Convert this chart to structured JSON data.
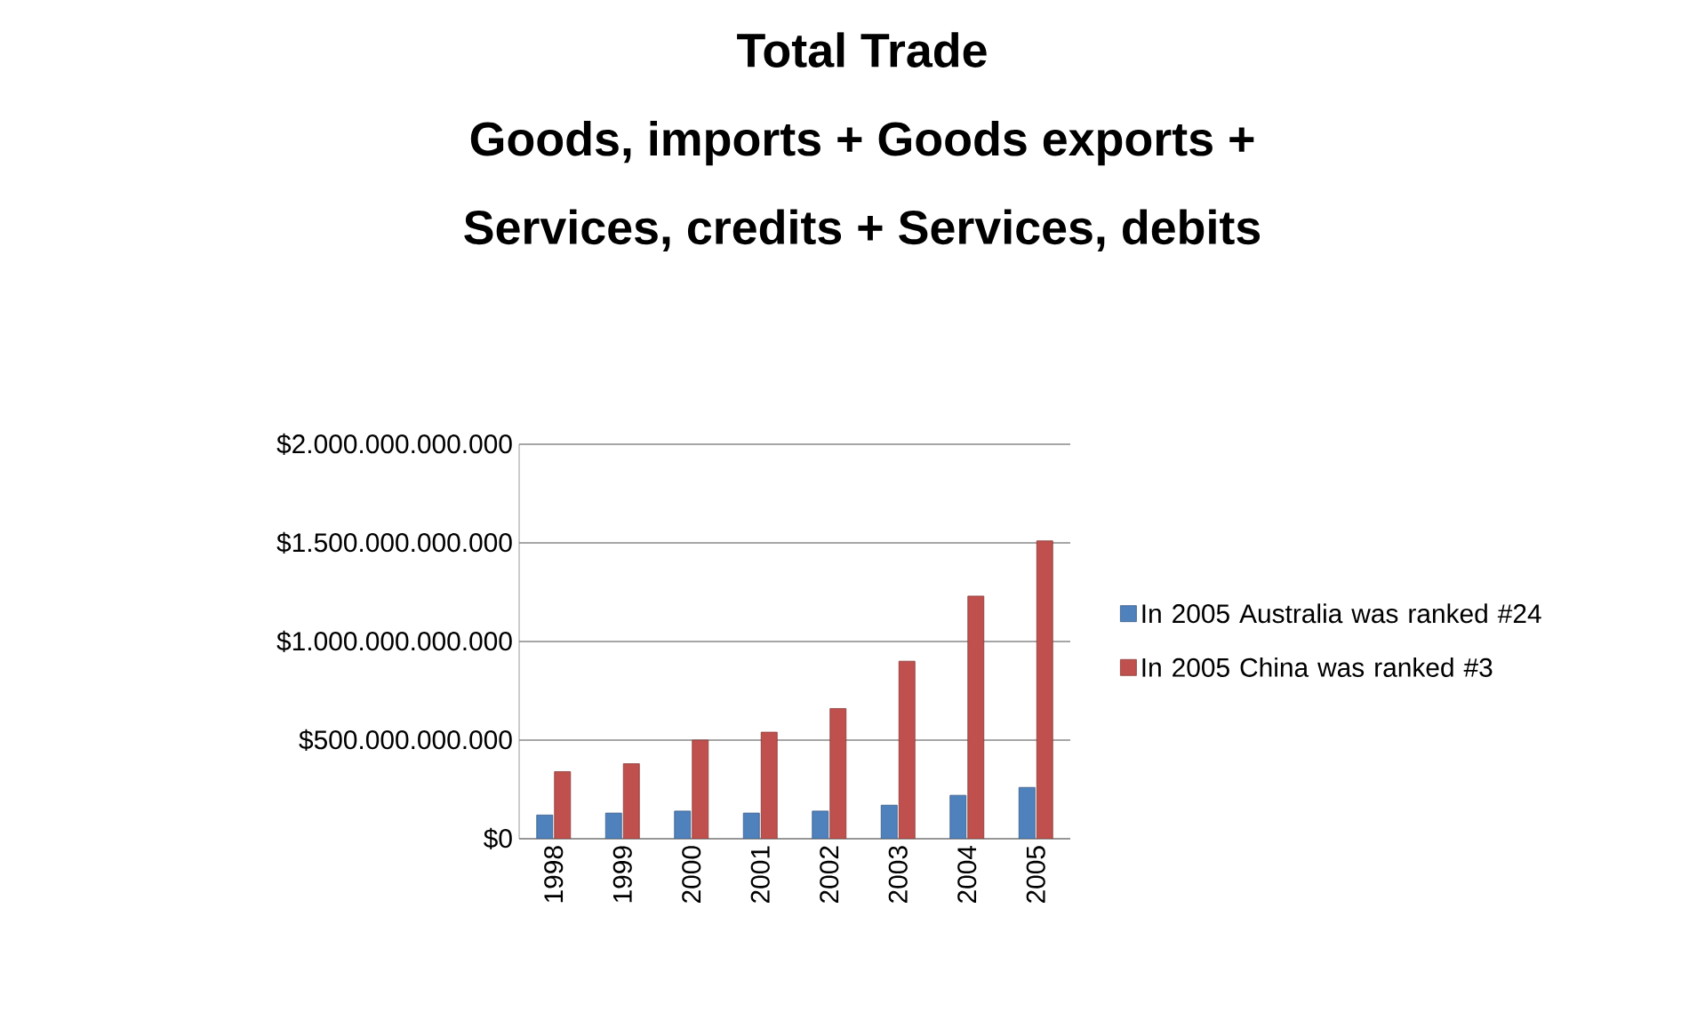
{
  "chart_data": {
    "type": "bar",
    "title": "Total Trade\nGoods, imports + Goods exports +\nServices, credits + Services, debits",
    "categories": [
      "1998",
      "1999",
      "2000",
      "2001",
      "2002",
      "2003",
      "2004",
      "2005"
    ],
    "series": [
      {
        "name": "In 2005 Australia was ranked #24",
        "color": "#4f81bd",
        "values": [
          120000000000,
          130000000000,
          140000000000,
          130000000000,
          140000000000,
          170000000000,
          220000000000,
          260000000000
        ]
      },
      {
        "name": "In 2005 China was ranked #3",
        "color": "#c0504d",
        "values": [
          340000000000,
          380000000000,
          500000000000,
          540000000000,
          660000000000,
          900000000000,
          1230000000000,
          1510000000000
        ]
      }
    ],
    "ylim": [
      0,
      2000000000000
    ],
    "yticks": [
      {
        "value": 0,
        "label": "$0"
      },
      {
        "value": 500000000000,
        "label": "$500.000.000.000"
      },
      {
        "value": 1000000000000,
        "label": "$1.000.000.000.000"
      },
      {
        "value": 1500000000000,
        "label": "$1.500.000.000.000"
      },
      {
        "value": 2000000000000,
        "label": "$2.000.000.000.000"
      }
    ],
    "grid": "y",
    "legend": "right"
  }
}
